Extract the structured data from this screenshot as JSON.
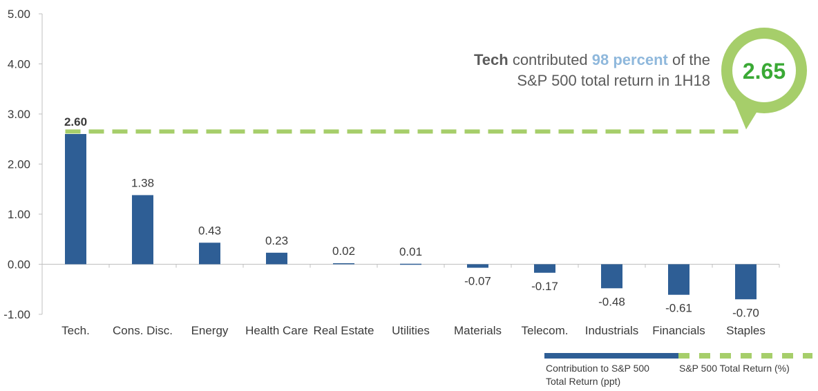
{
  "chart_data": {
    "type": "bar",
    "categories": [
      "Tech.",
      "Cons. Disc.",
      "Energy",
      "Health Care",
      "Real Estate",
      "Utilities",
      "Materials",
      "Telecom.",
      "Industrials",
      "Financials",
      "Staples"
    ],
    "series": [
      {
        "name": "Contribution to S&P 500 Total Return (ppt)",
        "values": [
          2.6,
          1.38,
          0.43,
          0.23,
          0.02,
          0.01,
          -0.07,
          -0.17,
          -0.48,
          -0.61,
          -0.7
        ],
        "labels": [
          "2.60",
          "1.38",
          "0.43",
          "0.23",
          "0.02",
          "0.01",
          "-0.07",
          "-0.17",
          "-0.48",
          "-0.61",
          "-0.70"
        ],
        "color": "#2e5e95"
      },
      {
        "name": "S&P 500 Total Return (%)",
        "value": 2.65,
        "label": "2.65",
        "color": "#a6ce6a",
        "style": "dashed"
      }
    ],
    "ylim": [
      -1.0,
      5.0
    ],
    "yticks": [
      "5.00",
      "4.00",
      "3.00",
      "2.00",
      "1.00",
      "0.00",
      "-1.00"
    ],
    "ytick_values": [
      5,
      4,
      3,
      2,
      1,
      0,
      -1
    ],
    "grid": false,
    "legend": "bottom-right"
  },
  "annotation": {
    "line1_bold": "Tech",
    "line1_a": " contributed ",
    "line1_highlight": "98 percent",
    "line1_b": " of the",
    "line2": "S&P 500 total return in 1H18"
  },
  "legend": {
    "bar_label_line1": "Contribution to S&P 500",
    "bar_label_line2": "Total Return (ppt)",
    "line_label": "S&P 500 Total Return (%)"
  },
  "colors": {
    "bar": "#2e5e95",
    "total_line": "#a6ce6a",
    "bubble_text": "#3aa935",
    "highlight": "#8fb8dc",
    "axis": "#bfbfbf"
  }
}
